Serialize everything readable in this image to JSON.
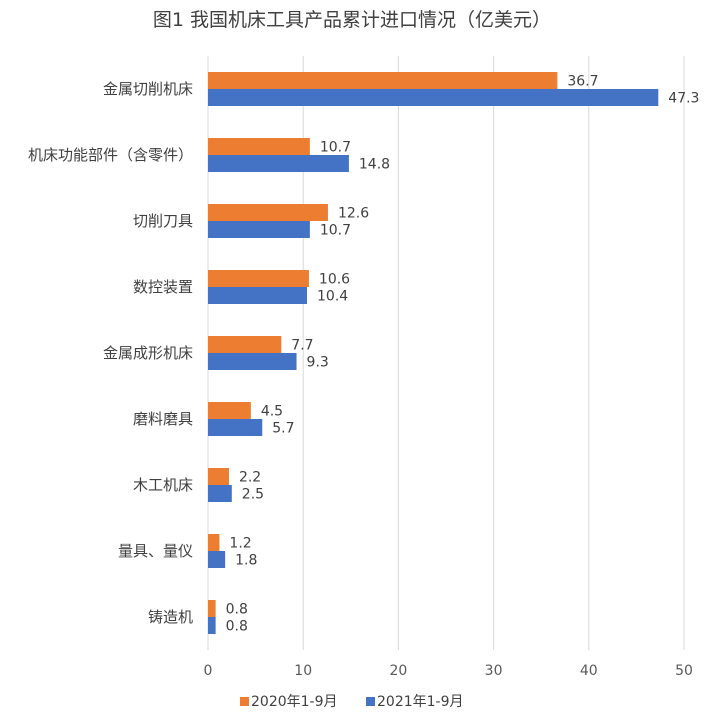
{
  "chart_data": {
    "type": "bar",
    "orientation": "horizontal",
    "title": "图1  我国机床工具产品累计进口情况（亿美元）",
    "categories": [
      "金属切削机床",
      "机床功能部件（含零件）",
      "切削刀具",
      "数控装置",
      "金属成形机床",
      "磨料磨具",
      "木工机床",
      "量具、量仪",
      "铸造机"
    ],
    "series": [
      {
        "name": "2020年1-9月",
        "color": "#ED7D31",
        "values": [
          36.7,
          10.7,
          12.6,
          10.6,
          7.7,
          4.5,
          2.2,
          1.2,
          0.8
        ]
      },
      {
        "name": "2021年1-9月",
        "color": "#4472C4",
        "values": [
          47.3,
          14.8,
          10.7,
          10.4,
          9.3,
          5.7,
          2.5,
          1.8,
          0.8
        ]
      }
    ],
    "xlim": [
      0,
      50
    ],
    "xticks": [
      0,
      10,
      20,
      30,
      40,
      50
    ],
    "grid": true,
    "legend": "bottom"
  }
}
